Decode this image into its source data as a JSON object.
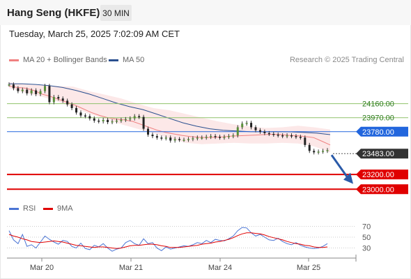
{
  "header": {
    "title": "Hang Seng (HKFE)",
    "timeframe": "30 MIN",
    "datetime": "Tuesday, March 25, 2025 7:02:09 AM CET"
  },
  "legend": {
    "ma20_label": "MA 20 + Bollinger Bands",
    "ma50_label": "MA 50",
    "ma20_color": "#f08080",
    "ma50_color": "#2a4f8f",
    "credit": "Research © 2025 Trading Central"
  },
  "rsi_legend": {
    "rsi_label": "RSI",
    "ma_label": "9MA",
    "rsi_color": "#4a74d4",
    "ma_color": "#e00000"
  },
  "chart_data": [
    {
      "type": "line",
      "title": "Hang Seng (HKFE) 30 MIN",
      "x_ticks": [
        "Mar 20",
        "Mar 21",
        "Mar 24",
        "Mar 25"
      ],
      "ylim": [
        22870,
        24620
      ],
      "price_series": [
        24420,
        24370,
        24330,
        24350,
        24300,
        24340,
        24290,
        24330,
        24400,
        24180,
        24250,
        24230,
        24200,
        24150,
        24100,
        24040,
        24000,
        23990,
        23960,
        23930,
        23920,
        23940,
        23910,
        23920,
        23930,
        23940,
        23950,
        23960,
        23990,
        23980,
        23820,
        23740,
        23720,
        23700,
        23690,
        23700,
        23660,
        23680,
        23670,
        23670,
        23680,
        23690,
        23700,
        23700,
        23710,
        23720,
        23710,
        23700,
        23710,
        23720,
        23730,
        23840,
        23890,
        23900,
        23840,
        23800,
        23780,
        23760,
        23750,
        23740,
        23730,
        23720,
        23730,
        23720,
        23710,
        23700,
        23600,
        23520,
        23500,
        23510,
        23520,
        23530
      ],
      "ma20": [
        24400,
        24380,
        24370,
        24340,
        24290,
        24260,
        24220,
        24180,
        24140,
        24090,
        24040,
        24000,
        23970,
        23950,
        23940,
        23920,
        23880,
        23840,
        23800,
        23770,
        23750,
        23730,
        23715,
        23705,
        23700,
        23705,
        23710,
        23720,
        23725,
        23730,
        23735,
        23740,
        23745,
        23740,
        23730,
        23725,
        23715,
        23700,
        23650,
        23600
      ],
      "ma50": [
        24430,
        24430,
        24420,
        24405,
        24380,
        24340,
        24290,
        24230,
        24170,
        24120,
        24080,
        24020,
        23960,
        23900,
        23855,
        23820,
        23800,
        23790,
        23780,
        23778,
        23780,
        23778,
        23770,
        23760,
        23740
      ],
      "bollinger_upper": [
        24450,
        24420,
        24410,
        24400,
        24390,
        24330,
        24280,
        24230,
        24160,
        24100,
        24070,
        24020,
        23970,
        23920,
        23880,
        23850,
        23830,
        23840,
        23860,
        23840,
        23810
      ],
      "bollinger_lower": [
        24370,
        24310,
        24260,
        24190,
        24110,
        24020,
        23950,
        23880,
        23820,
        23760,
        23690,
        23630,
        23610,
        23620,
        23630,
        23620,
        23620,
        23630,
        23620,
        23580,
        23500
      ],
      "levels": [
        {
          "value": 24160.0,
          "label": "24160.00",
          "color": "#8fc26a",
          "kind": "resistance"
        },
        {
          "value": 23970.0,
          "label": "23970.00",
          "color": "#8fc26a",
          "kind": "resistance"
        },
        {
          "value": 23780.0,
          "label": "23780.00",
          "color": "#2266dd",
          "kind": "pivot"
        },
        {
          "value": 23483.0,
          "label": "23483.00",
          "color": "#333333",
          "kind": "last"
        },
        {
          "value": 23200.0,
          "label": "23200.00",
          "color": "#e00000",
          "kind": "target"
        },
        {
          "value": 23000.0,
          "label": "23000.00",
          "color": "#e00000",
          "kind": "target"
        }
      ],
      "forecast_arrow": "down"
    },
    {
      "type": "line",
      "title": "RSI",
      "y_ticks": [
        70,
        50,
        30
      ],
      "ylim": [
        14,
        86
      ],
      "rsi": [
        62,
        45,
        38,
        55,
        33,
        36,
        30,
        41,
        52,
        46,
        41,
        37,
        44,
        42,
        33,
        30,
        39,
        29,
        27,
        35,
        32,
        38,
        30,
        24,
        28,
        30,
        40,
        44,
        38,
        35,
        47,
        38,
        40,
        30,
        25,
        32,
        28,
        30,
        32,
        34,
        33,
        36,
        40,
        38,
        44,
        40,
        46,
        44,
        43,
        47,
        52,
        62,
        68,
        67,
        58,
        52,
        55,
        50,
        45,
        44,
        48,
        42,
        38,
        36,
        40,
        35,
        32,
        30,
        29,
        30,
        33,
        38
      ],
      "rsi_ma9": [
        55,
        52,
        50,
        47,
        45,
        42,
        41,
        40,
        41,
        42,
        43,
        42,
        41,
        39,
        37,
        35,
        34,
        33,
        32,
        31,
        32,
        32,
        31,
        30,
        29,
        30,
        32,
        34,
        35,
        35,
        36,
        37,
        37,
        36,
        34,
        33,
        31,
        31,
        31,
        32,
        33,
        34,
        35,
        37,
        38,
        39,
        41,
        42,
        44,
        46,
        49,
        53,
        56,
        58,
        58,
        57,
        56,
        54,
        51,
        49,
        47,
        45,
        42,
        40,
        38,
        37,
        35,
        34,
        32,
        31,
        31,
        32
      ]
    }
  ]
}
